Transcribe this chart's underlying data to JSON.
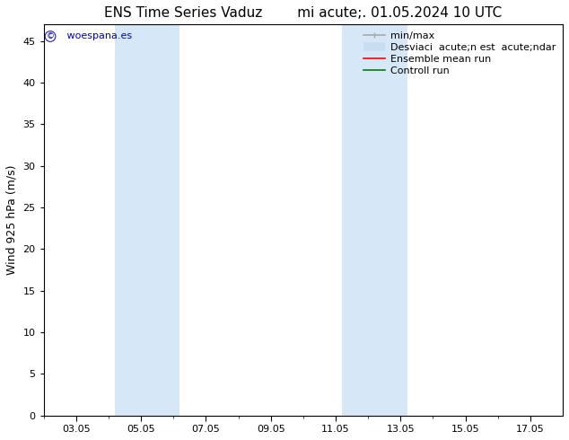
{
  "title_left": "ENS Time Series Vaduz",
  "title_right": "mi acute;. 01.05.2024 10 UTC",
  "ylabel": "Wind 925 hPa (m/s)",
  "ylim": [
    0,
    47
  ],
  "yticks": [
    0,
    5,
    10,
    15,
    20,
    25,
    30,
    35,
    40,
    45
  ],
  "xlim": [
    2.0,
    18.0
  ],
  "xtick_labels": [
    "03.05",
    "05.05",
    "07.05",
    "09.05",
    "11.05",
    "13.05",
    "15.05",
    "17.05"
  ],
  "xtick_positions": [
    3,
    5,
    7,
    9,
    11,
    13,
    15,
    17
  ],
  "shaded_bands": [
    {
      "start": 4.2,
      "end": 6.2
    },
    {
      "start": 11.2,
      "end": 13.2
    }
  ],
  "shade_color": "#d6e8f7",
  "background_color": "#ffffff",
  "watermark_text": " woespana.es",
  "watermark_color": "#0000cc",
  "legend_labels": [
    "min/max",
    "Desviaci  acute;n est  acute;ndar",
    "Ensemble mean run",
    "Controll run"
  ],
  "legend_colors": [
    "#aaaaaa",
    "#c8ddf0",
    "#ff0000",
    "#008000"
  ],
  "title_fontsize": 11,
  "label_fontsize": 9,
  "tick_fontsize": 8,
  "legend_fontsize": 8,
  "figsize": [
    6.34,
    4.9
  ],
  "dpi": 100
}
